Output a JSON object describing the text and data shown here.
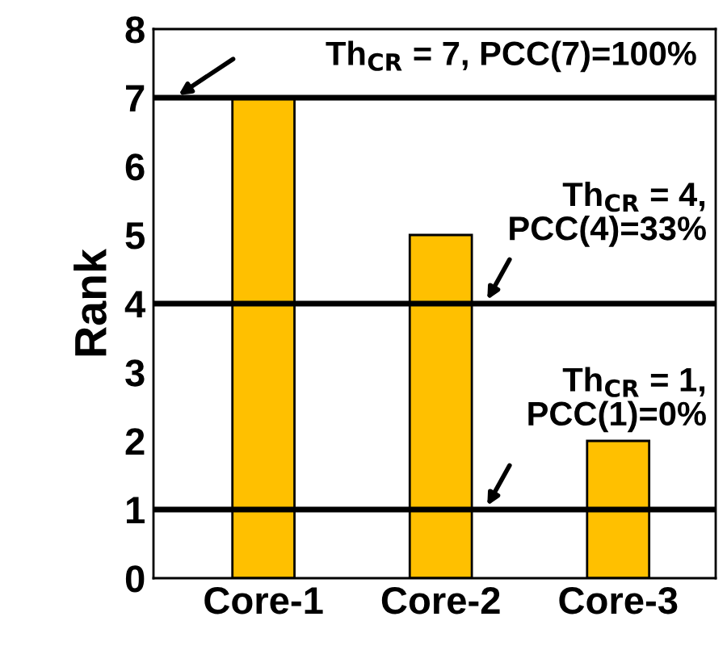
{
  "chart_data": {
    "type": "bar",
    "ylabel": "Rank",
    "categories": [
      "Core-1",
      "Core-2",
      "Core-3"
    ],
    "values": [
      7,
      5,
      2
    ],
    "color": "#ffc000",
    "ylim": [
      0,
      8
    ],
    "yticks": [
      0,
      1,
      2,
      3,
      4,
      5,
      6,
      7,
      8
    ],
    "grid": false,
    "ref_lines": [
      {
        "axis": "y",
        "value": 7,
        "label": "Th$_{CR}$ = 7, PCC(7)=100%",
        "color": "#000000"
      },
      {
        "axis": "y",
        "value": 4,
        "label": "Th$_{CR}$ = 4,\nPCC(4)=33%",
        "color": "#000000"
      },
      {
        "axis": "y",
        "value": 1,
        "label": "Th$_{CR}$ = 1,\nPCC(1)=0%",
        "color": "#000000"
      }
    ]
  }
}
